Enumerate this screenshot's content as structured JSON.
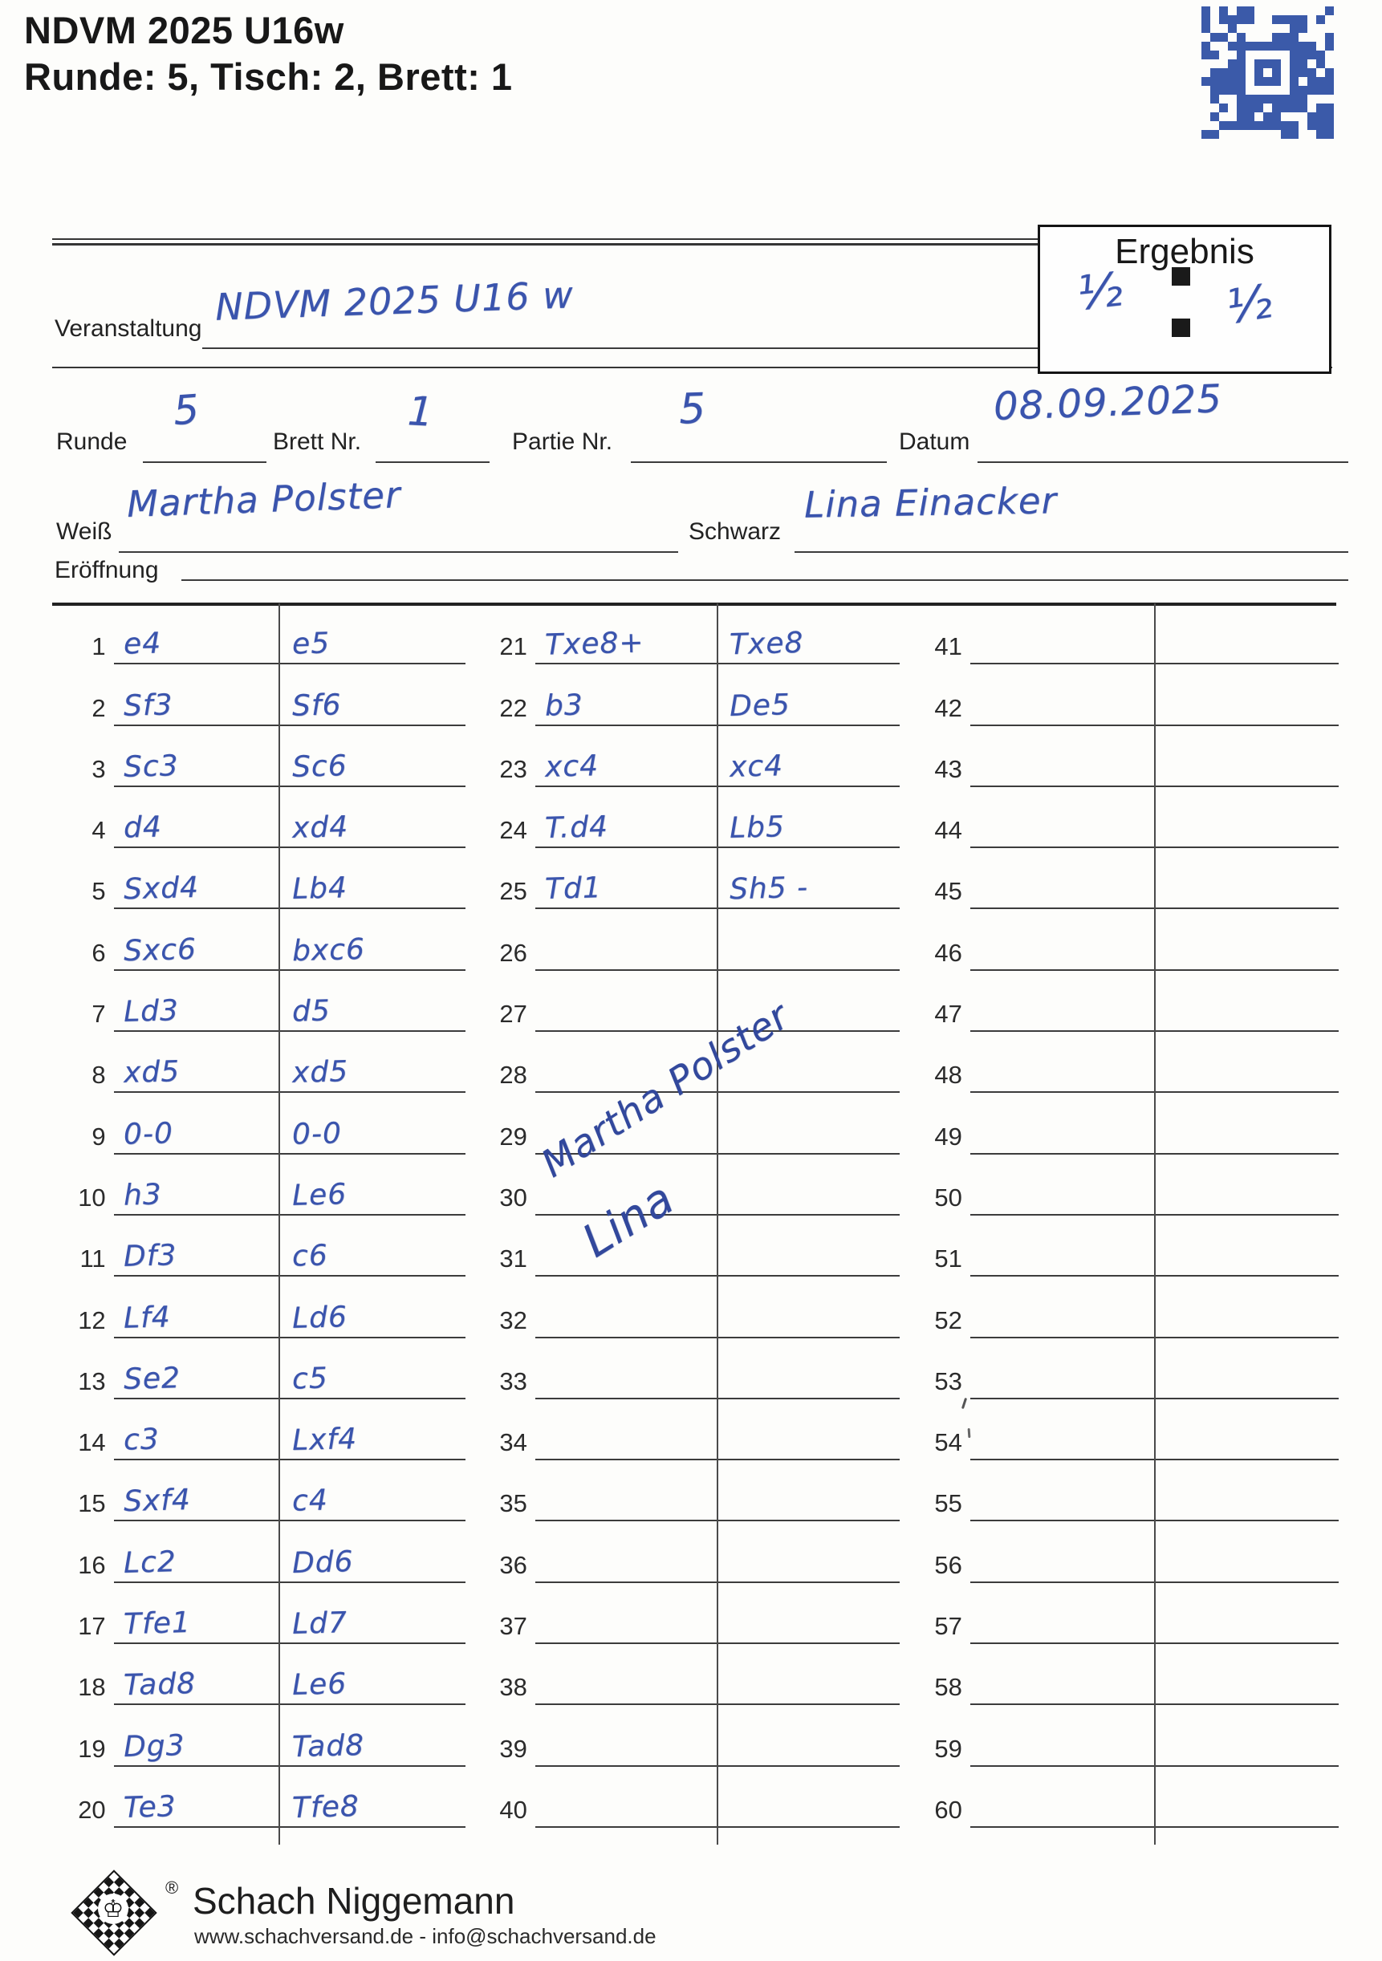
{
  "header": {
    "title": "NDVM 2025 U16w",
    "subtitle": "Runde: 5, Tisch: 2, Brett: 1"
  },
  "qr_code": {
    "color": "#3b5aa9"
  },
  "event_row": {
    "label": "Veranstaltung",
    "value": "NDVM 2025 U16 w"
  },
  "result_box": {
    "label": "Ergebnis",
    "white_score": "½",
    "black_score": "½"
  },
  "meta": {
    "runde_label": "Runde",
    "runde_value": "5",
    "brett_label": "Brett Nr.",
    "brett_value": "1",
    "partie_label": "Partie Nr.",
    "partie_value": "5",
    "datum_label": "Datum",
    "datum_value": "08.09.2025",
    "weiss_label": "Weiß",
    "weiss_value": "Martha Polster",
    "schwarz_label": "Schwarz",
    "schwarz_value": "Lina Einacker",
    "eroeffnung_label": "Eröffnung",
    "eroeffnung_value": ""
  },
  "score_table": {
    "column_starts": [
      1,
      21,
      41
    ],
    "rows_per_column": 20,
    "moves": [
      [
        "e4",
        "e5"
      ],
      [
        "Sf3",
        "Sf6"
      ],
      [
        "Sc3",
        "Sc6"
      ],
      [
        "d4",
        "xd4"
      ],
      [
        "Sxd4",
        "Lb4"
      ],
      [
        "Sxc6",
        "bxc6"
      ],
      [
        "Ld3",
        "d5"
      ],
      [
        "xd5",
        "xd5"
      ],
      [
        "0-0",
        "0-0"
      ],
      [
        "h3",
        "Le6"
      ],
      [
        "Df3",
        "c6"
      ],
      [
        "Lf4",
        "Ld6"
      ],
      [
        "Se2",
        "c5"
      ],
      [
        "c3",
        "Lxf4"
      ],
      [
        "Sxf4",
        "c4"
      ],
      [
        "Lc2",
        "Dd6"
      ],
      [
        "Tfe1",
        "Ld7"
      ],
      [
        "Tad8",
        "Le6"
      ],
      [
        "Dg3",
        "Tad8"
      ],
      [
        "Te3",
        "Tfe8"
      ],
      [
        "Txe8+",
        "Txe8"
      ],
      [
        "b3",
        "De5"
      ],
      [
        "xc4",
        "xc4"
      ],
      [
        "T.d4",
        "Lb5"
      ],
      [
        "Td1",
        "Sh5 -"
      ]
    ]
  },
  "signatures": {
    "white": "Martha Polster",
    "black": "Lina"
  },
  "footer": {
    "brand": "Schach Niggemann",
    "contact": "www.schachversand.de  -  info@schachversand.de",
    "registered_mark": "®",
    "king_icon": "♔"
  }
}
